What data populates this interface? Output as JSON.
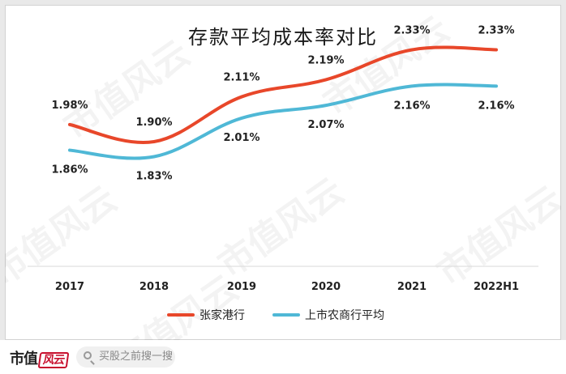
{
  "chart_data": {
    "type": "line",
    "title": "存款平均成本率对比",
    "categories": [
      "2017",
      "2018",
      "2019",
      "2020",
      "2021",
      "2022H1"
    ],
    "series": [
      {
        "name": "张家港行",
        "values": [
          1.98,
          1.9,
          2.11,
          2.19,
          2.33,
          2.33
        ],
        "labels": [
          "1.98%",
          "1.90%",
          "2.11%",
          "2.19%",
          "2.33%",
          "2.33%"
        ],
        "color": "#e8472a"
      },
      {
        "name": "上市农商行平均",
        "values": [
          1.86,
          1.83,
          2.01,
          2.07,
          2.16,
          2.16
        ],
        "labels": [
          "1.86%",
          "1.83%",
          "2.01%",
          "2.07%",
          "2.16%",
          "2.16%"
        ],
        "color": "#4fb8d6"
      }
    ],
    "legend": "bottom",
    "grid": false
  },
  "footer": {
    "logo_text": "市值",
    "logo_stamp": "风云",
    "search_placeholder": "买股之前搜一搜"
  },
  "watermark": "市值风云"
}
